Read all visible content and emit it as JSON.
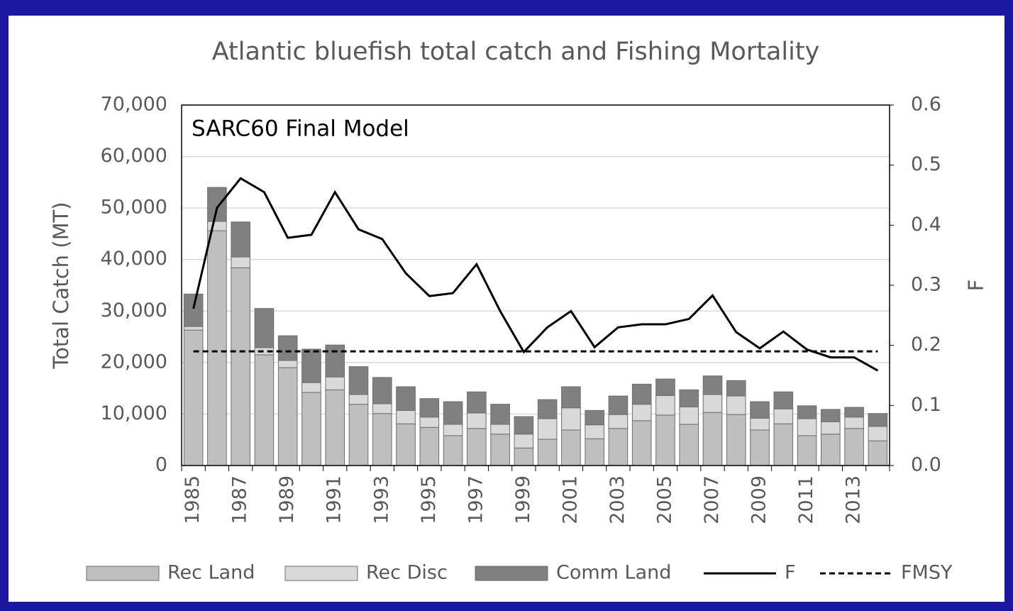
{
  "chart_data": {
    "type": "bar",
    "title": "Atlantic bluefish total catch and Fishing Mortality",
    "annotation": "SARC60 Final Model",
    "ylabel": "Total Catch (MT)",
    "y2label": "F",
    "categories": [
      "1985",
      null,
      "1987",
      null,
      "1989",
      null,
      "1991",
      null,
      "1993",
      null,
      "1995",
      null,
      "1997",
      null,
      "1999",
      null,
      "2001",
      null,
      "2003",
      null,
      "2005",
      null,
      "2007",
      null,
      "2009",
      null,
      "2011",
      null,
      "2013",
      null
    ],
    "series": [
      {
        "name": "Rec Land",
        "type": "bar",
        "color": "#bfbfbf",
        "values": [
          26300,
          45600,
          38400,
          21500,
          19000,
          14200,
          14700,
          11900,
          10100,
          8100,
          7400,
          5800,
          7200,
          6100,
          3400,
          5100,
          6900,
          5200,
          7200,
          8700,
          9800,
          8000,
          10300,
          9900,
          6900,
          8100,
          5800,
          6100,
          7200,
          4800
        ]
      },
      {
        "name": "Rec Disc",
        "type": "bar",
        "color": "#d9d9d9",
        "values": [
          700,
          1800,
          2100,
          1400,
          1400,
          1900,
          2500,
          1900,
          1900,
          2600,
          2000,
          2200,
          3000,
          1900,
          2700,
          4000,
          4300,
          2700,
          2700,
          3200,
          3800,
          3400,
          3500,
          3600,
          2300,
          2900,
          3300,
          2400,
          2200,
          2800
        ]
      },
      {
        "name": "Comm Land",
        "type": "bar",
        "color": "#808080",
        "values": [
          6300,
          6600,
          6800,
          7600,
          4800,
          6500,
          6200,
          5400,
          5100,
          4600,
          3600,
          4400,
          4100,
          3900,
          3400,
          3700,
          4100,
          2800,
          3600,
          3900,
          3200,
          3300,
          3600,
          3000,
          3200,
          3300,
          2500,
          2400,
          1900,
          2500
        ]
      },
      {
        "name": "F",
        "type": "line",
        "axis": "y2",
        "color": "#000000",
        "dashed": false,
        "values": [
          0.261,
          0.429,
          0.478,
          0.455,
          0.379,
          0.384,
          0.455,
          0.393,
          0.377,
          0.32,
          0.282,
          0.287,
          0.335,
          0.257,
          0.189,
          0.23,
          0.257,
          0.197,
          0.23,
          0.235,
          0.235,
          0.244,
          0.283,
          0.222,
          0.195,
          0.223,
          0.193,
          0.18,
          0.18,
          0.158
        ]
      },
      {
        "name": "FMSY",
        "type": "line",
        "axis": "y2",
        "color": "#000000",
        "dashed": true,
        "values": [
          0.19,
          0.19,
          0.19,
          0.19,
          0.19,
          0.19,
          0.19,
          0.19,
          0.19,
          0.19,
          0.19,
          0.19,
          0.19,
          0.19,
          0.19,
          0.19,
          0.19,
          0.19,
          0.19,
          0.19,
          0.19,
          0.19,
          0.19,
          0.19,
          0.19,
          0.19,
          0.19,
          0.19,
          0.19,
          0.19
        ]
      }
    ],
    "ylim": [
      0,
      70000
    ],
    "yticks": [
      0,
      {
        "value": 10000,
        "label": "10,000"
      },
      {
        "value": 20000,
        "label": "20,000"
      },
      {
        "value": 30000,
        "label": "30,000"
      },
      {
        "value": 40000,
        "label": "40,000"
      },
      {
        "value": 50000,
        "label": "50,000"
      },
      {
        "value": 60000,
        "label": "60,000"
      },
      {
        "value": 70000,
        "label": "70,000"
      }
    ],
    "y2lim": [
      0,
      0.6
    ],
    "y2ticks": [
      {
        "value": 0,
        "label": "0.0"
      },
      0.1,
      0.2,
      0.3,
      0.4,
      0.5,
      0.6
    ],
    "grid": true,
    "legend": "bottom"
  }
}
